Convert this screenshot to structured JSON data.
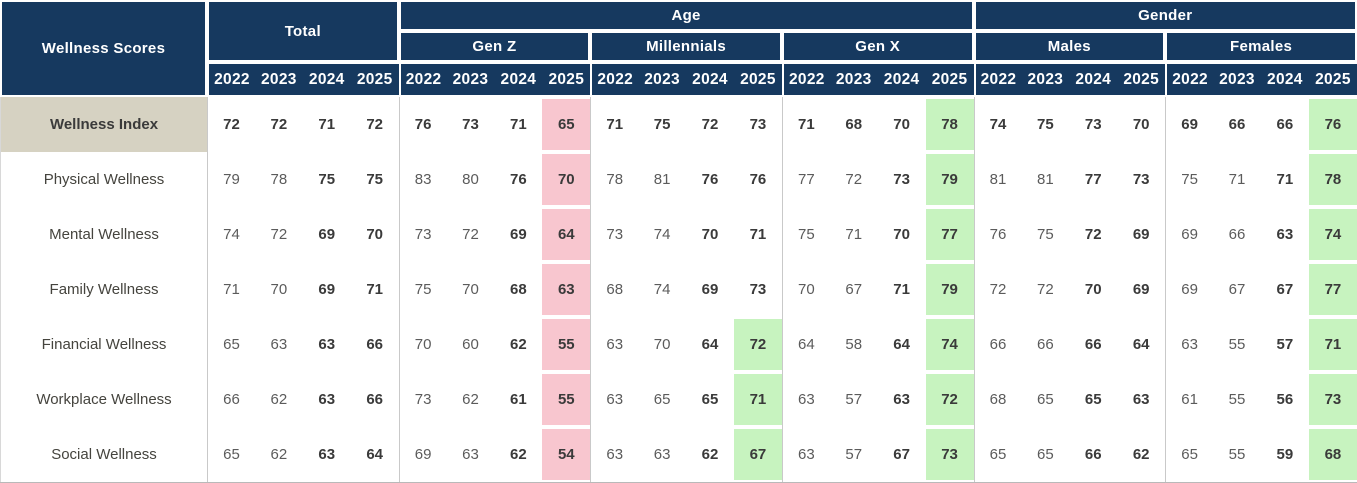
{
  "colors": {
    "header_navy": "#16395F",
    "index_row_beige": "#D6D2C2",
    "decline_pink": "#F8C6CF",
    "improve_green": "#C7F3BF",
    "regular_text": "#5B5B5B",
    "bold_text": "#3A3A3A"
  },
  "chart_data": {
    "type": "table",
    "title": "Wellness Scores",
    "corner_label": "Wellness Scores",
    "years": [
      "2022",
      "2023",
      "2024",
      "2025"
    ],
    "groups": [
      {
        "label": "Total",
        "parent": ""
      },
      {
        "label": "Gen Z",
        "parent": "Age"
      },
      {
        "label": "Millennials",
        "parent": "Age"
      },
      {
        "label": "Gen X",
        "parent": "Age"
      },
      {
        "label": "Males",
        "parent": "Gender"
      },
      {
        "label": "Females",
        "parent": "Gender"
      }
    ],
    "rows": [
      {
        "label": "Wellness Index",
        "emphasis": true,
        "values": [
          72,
          72,
          71,
          72,
          76,
          73,
          71,
          65,
          71,
          75,
          72,
          73,
          71,
          68,
          70,
          78,
          74,
          75,
          73,
          70,
          69,
          66,
          66,
          76
        ],
        "highlights": {
          "7": "pink",
          "15": "green",
          "23": "green"
        }
      },
      {
        "label": "Physical Wellness",
        "emphasis": false,
        "values": [
          79,
          78,
          75,
          75,
          83,
          80,
          76,
          70,
          78,
          81,
          76,
          76,
          77,
          72,
          73,
          79,
          81,
          81,
          77,
          73,
          75,
          71,
          71,
          78
        ],
        "highlights": {
          "7": "pink",
          "15": "green",
          "23": "green"
        }
      },
      {
        "label": "Mental Wellness",
        "emphasis": false,
        "values": [
          74,
          72,
          69,
          70,
          73,
          72,
          69,
          64,
          73,
          74,
          70,
          71,
          75,
          71,
          70,
          77,
          76,
          75,
          72,
          69,
          69,
          66,
          63,
          74
        ],
        "highlights": {
          "7": "pink",
          "15": "green",
          "23": "green"
        }
      },
      {
        "label": "Family Wellness",
        "emphasis": false,
        "values": [
          71,
          70,
          69,
          71,
          75,
          70,
          68,
          63,
          68,
          74,
          69,
          73,
          70,
          67,
          71,
          79,
          72,
          72,
          70,
          69,
          69,
          67,
          67,
          77
        ],
        "highlights": {
          "7": "pink",
          "15": "green",
          "23": "green"
        }
      },
      {
        "label": "Financial Wellness",
        "emphasis": false,
        "values": [
          65,
          63,
          63,
          66,
          70,
          60,
          62,
          55,
          63,
          70,
          64,
          72,
          64,
          58,
          64,
          74,
          66,
          66,
          66,
          64,
          63,
          55,
          57,
          71
        ],
        "highlights": {
          "7": "pink",
          "11": "green",
          "15": "green",
          "23": "green"
        }
      },
      {
        "label": "Workplace Wellness",
        "emphasis": false,
        "values": [
          66,
          62,
          63,
          66,
          73,
          62,
          61,
          55,
          63,
          65,
          65,
          71,
          63,
          57,
          63,
          72,
          68,
          65,
          65,
          63,
          61,
          55,
          56,
          73
        ],
        "highlights": {
          "7": "pink",
          "11": "green",
          "15": "green",
          "23": "green"
        }
      },
      {
        "label": "Social Wellness",
        "emphasis": false,
        "values": [
          65,
          62,
          63,
          64,
          69,
          63,
          62,
          54,
          63,
          63,
          62,
          67,
          63,
          57,
          67,
          73,
          65,
          65,
          66,
          62,
          65,
          55,
          59,
          68
        ],
        "highlights": {
          "7": "pink",
          "11": "green",
          "15": "green",
          "23": "green"
        }
      }
    ]
  }
}
